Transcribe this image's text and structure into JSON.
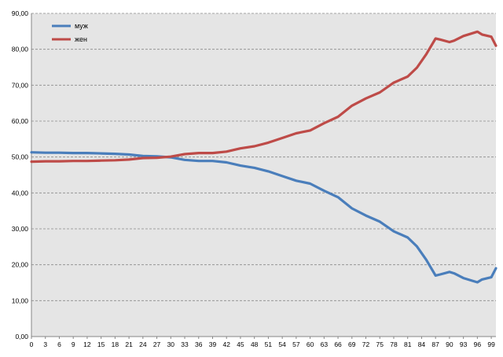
{
  "chart_data": {
    "type": "line",
    "title": "",
    "xlabel": "",
    "ylabel": "",
    "ylim": [
      0,
      90
    ],
    "yticks": [
      "0,00",
      "10,00",
      "20,00",
      "30,00",
      "40,00",
      "50,00",
      "60,00",
      "70,00",
      "80,00",
      "90,00"
    ],
    "xlim": [
      0,
      100
    ],
    "xticks": [
      "0",
      "3",
      "6",
      "9",
      "12",
      "15",
      "18",
      "21",
      "24",
      "27",
      "30",
      "33",
      "36",
      "39",
      "42",
      "45",
      "48",
      "51",
      "54",
      "57",
      "60",
      "63",
      "66",
      "69",
      "72",
      "75",
      "78",
      "81",
      "84",
      "87",
      "90",
      "93",
      "96",
      "99"
    ],
    "grid": true,
    "legend_position": "top-left",
    "x": [
      0,
      3,
      6,
      9,
      12,
      15,
      18,
      21,
      24,
      27,
      30,
      33,
      36,
      39,
      42,
      45,
      48,
      51,
      54,
      57,
      60,
      63,
      66,
      69,
      72,
      75,
      78,
      81,
      83,
      85,
      87,
      88,
      90,
      91,
      93,
      96,
      97,
      99,
      100
    ],
    "series": [
      {
        "name": "муж",
        "color": "#4a7ebb",
        "values": [
          51.3,
          51.2,
          51.2,
          51.1,
          51.1,
          51.0,
          50.9,
          50.7,
          50.3,
          50.2,
          49.9,
          49.2,
          48.9,
          48.9,
          48.5,
          47.6,
          47.0,
          46.0,
          44.7,
          43.4,
          42.6,
          40.6,
          38.8,
          35.7,
          33.7,
          32.0,
          29.3,
          27.6,
          25.1,
          21.4,
          17.0,
          17.3,
          18.0,
          17.6,
          16.3,
          15.1,
          15.9,
          16.5,
          19.0
        ]
      },
      {
        "name": "жен",
        "color": "#be4b48",
        "values": [
          48.7,
          48.8,
          48.8,
          48.9,
          48.9,
          49.0,
          49.1,
          49.3,
          49.7,
          49.8,
          50.1,
          50.8,
          51.1,
          51.1,
          51.5,
          52.4,
          53.0,
          54.0,
          55.3,
          56.6,
          57.4,
          59.4,
          61.2,
          64.3,
          66.3,
          68.0,
          70.7,
          72.4,
          74.9,
          78.6,
          83.0,
          82.7,
          82.0,
          82.4,
          83.7,
          84.9,
          84.1,
          83.5,
          81.0
        ]
      }
    ]
  }
}
